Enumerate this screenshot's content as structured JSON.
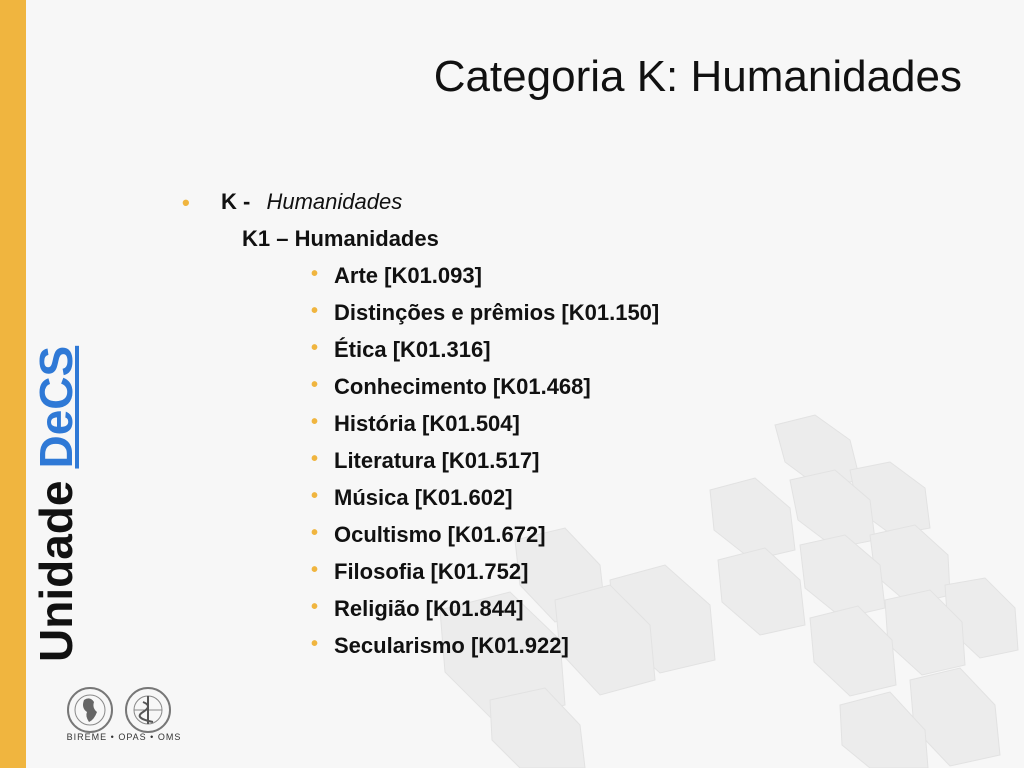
{
  "title": "Categoria K: Humanidades",
  "side_label": {
    "word1": "Unidade",
    "word2": "DeCS"
  },
  "level1": {
    "code": "K -",
    "label": "Humanidades"
  },
  "level2": "K1 – Humanidades",
  "items": [
    "Arte [K01.093]",
    "Distinções e prêmios [K01.150]",
    "Ética [K01.316]",
    "Conhecimento [K01.468]",
    "História [K01.504]",
    "Literatura [K01.517]",
    "Música [K01.602]",
    "Ocultismo [K01.672]",
    "Filosofia [K01.752]",
    "Religião [K01.844]",
    "Secularismo [K01.922]"
  ],
  "logo_text": {
    "left_logo": "PRO SALUTE NOVI MUNDI",
    "caption": "BIREME • OPAS • OMS"
  },
  "colors": {
    "accent": "#f0b53f",
    "link": "#2f79d6",
    "background": "#f7f7f7"
  }
}
